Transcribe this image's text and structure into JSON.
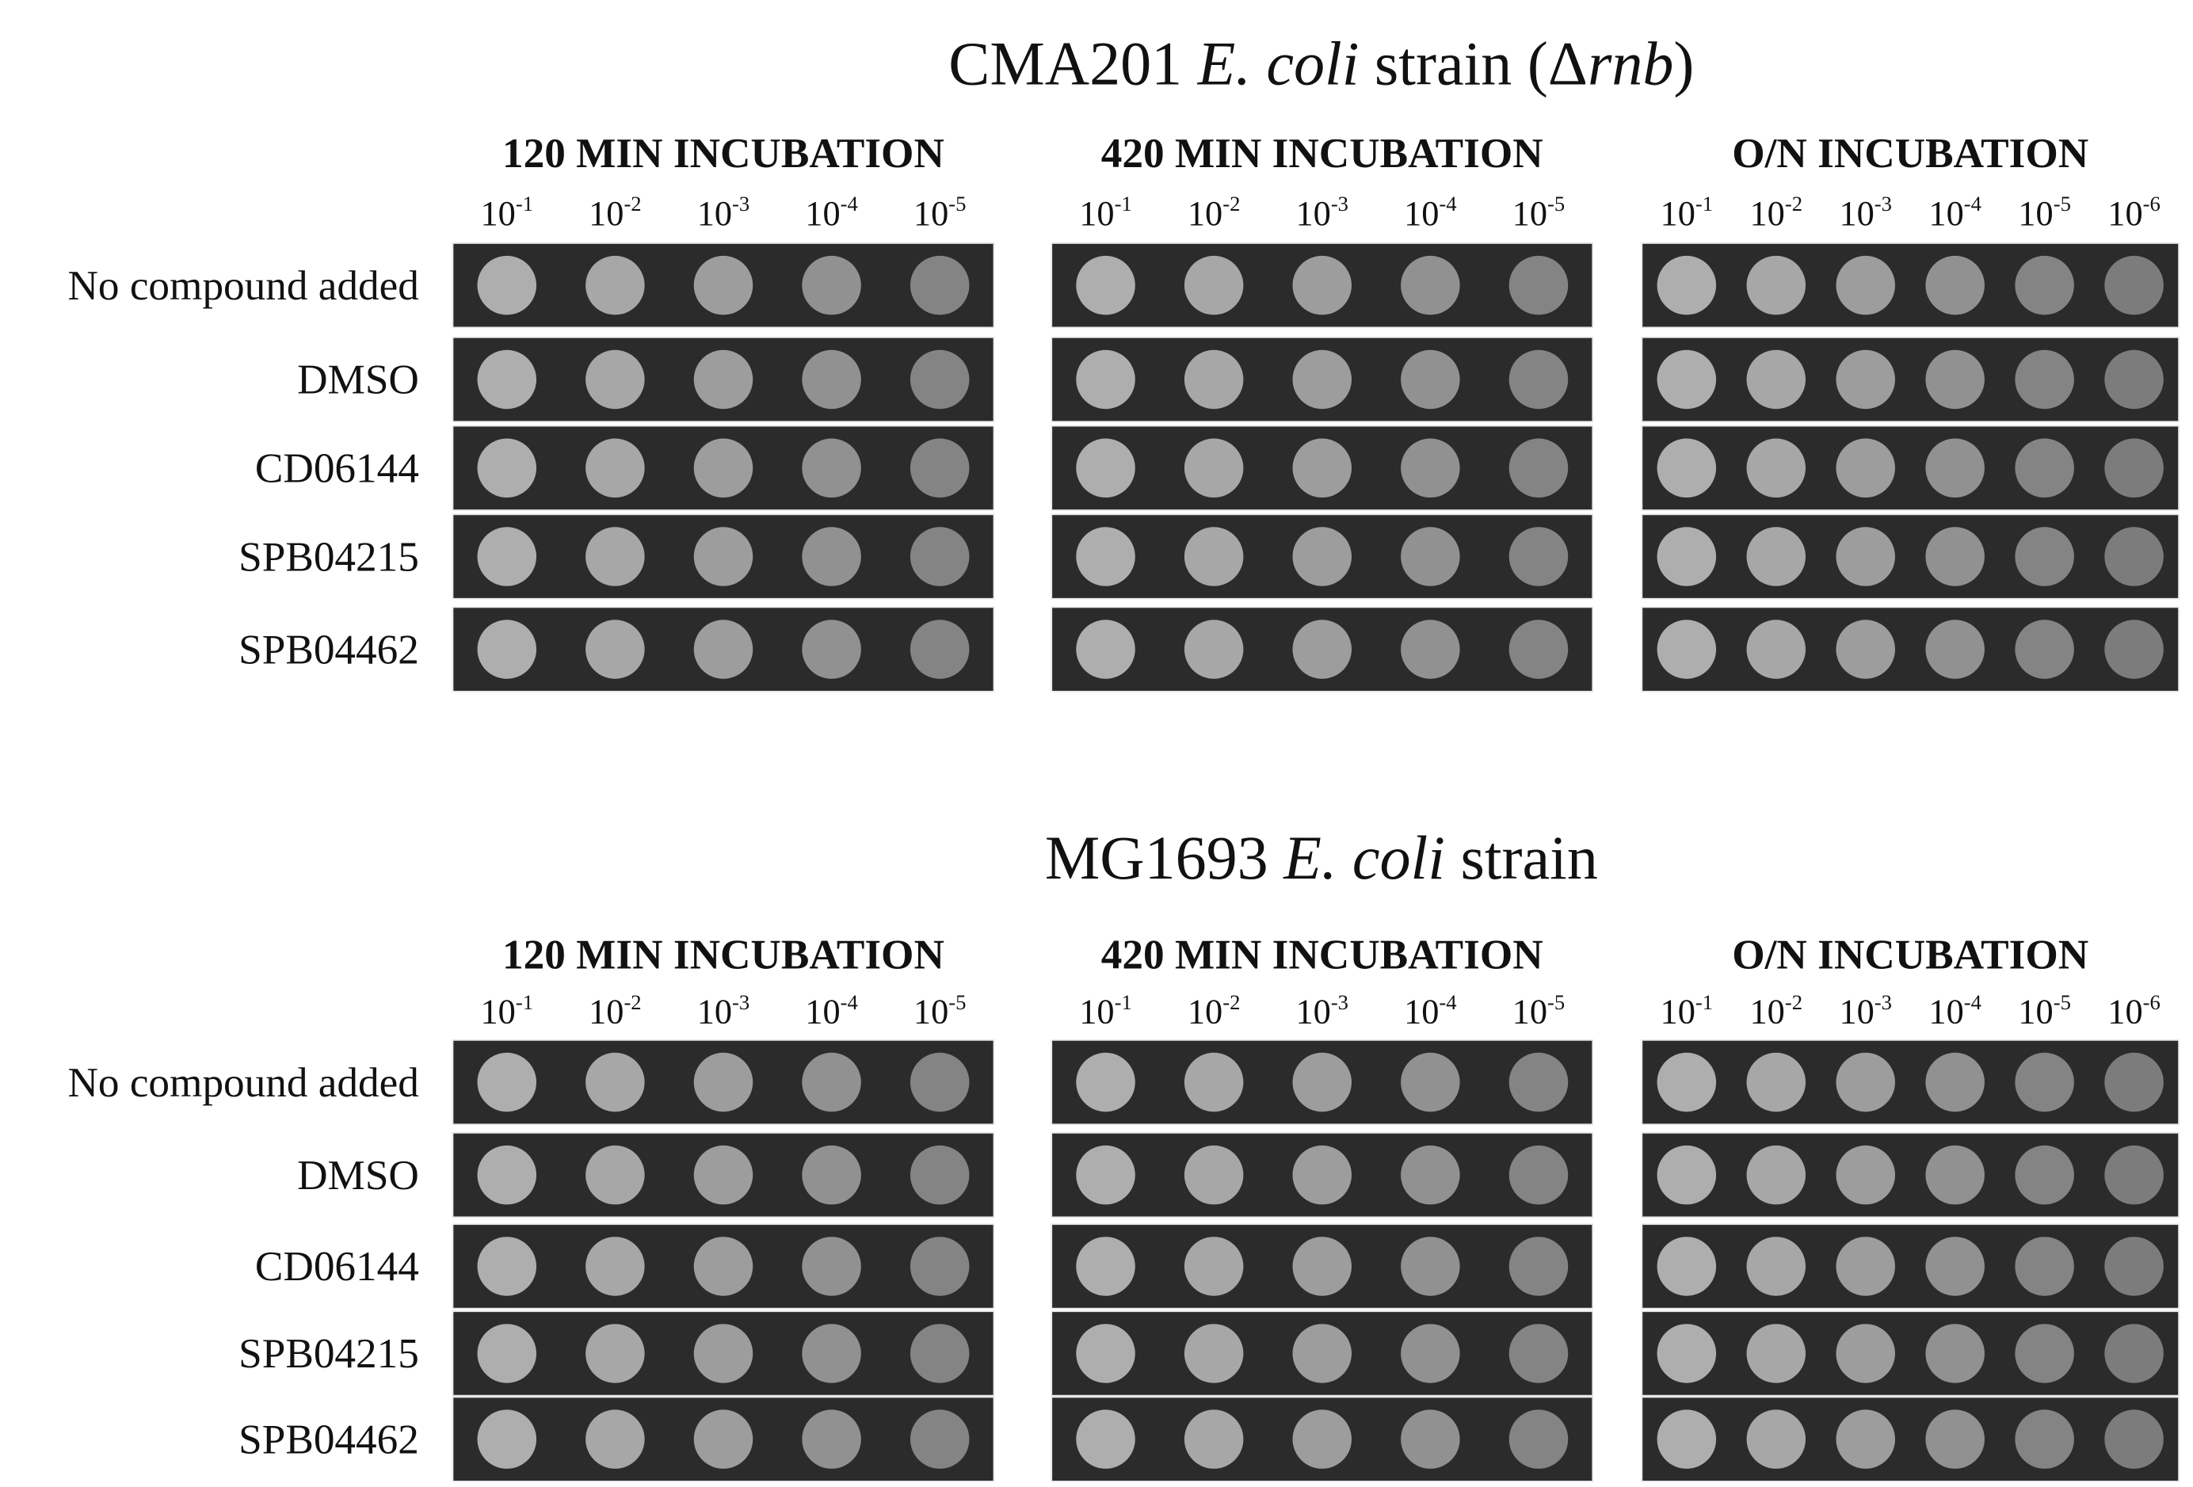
{
  "panels": [
    {
      "title": [
        {
          "text": "CMA201 ",
          "italic": false
        },
        {
          "text": "E. coli",
          "italic": true
        },
        {
          "text": " strain (Δ",
          "italic": false
        },
        {
          "text": "rnb",
          "italic": true
        },
        {
          "text": ")",
          "italic": false
        }
      ],
      "columns": [
        {
          "header": "120 MIN INCUBATION",
          "dilutions": [
            {
              "base": "10",
              "exponent": "-1"
            },
            {
              "base": "10",
              "exponent": "-2"
            },
            {
              "base": "10",
              "exponent": "-3"
            },
            {
              "base": "10",
              "exponent": "-4"
            },
            {
              "base": "10",
              "exponent": "-5"
            }
          ]
        },
        {
          "header": "420 MIN INCUBATION",
          "dilutions": [
            {
              "base": "10",
              "exponent": "-1"
            },
            {
              "base": "10",
              "exponent": "-2"
            },
            {
              "base": "10",
              "exponent": "-3"
            },
            {
              "base": "10",
              "exponent": "-4"
            },
            {
              "base": "10",
              "exponent": "-5"
            }
          ]
        },
        {
          "header": "O/N INCUBATION",
          "dilutions": [
            {
              "base": "10",
              "exponent": "-1"
            },
            {
              "base": "10",
              "exponent": "-2"
            },
            {
              "base": "10",
              "exponent": "-3"
            },
            {
              "base": "10",
              "exponent": "-4"
            },
            {
              "base": "10",
              "exponent": "-5"
            },
            {
              "base": "10",
              "exponent": "-6"
            }
          ]
        }
      ],
      "rows": [
        "No compound added",
        "DMSO",
        "CD06144",
        "SPB04215",
        "SPB04462"
      ]
    },
    {
      "title": [
        {
          "text": "MG1693 ",
          "italic": false
        },
        {
          "text": "E. coli",
          "italic": true
        },
        {
          "text": " strain",
          "italic": false
        }
      ],
      "columns": [
        {
          "header": "120 MIN INCUBATION",
          "dilutions": [
            {
              "base": "10",
              "exponent": "-1"
            },
            {
              "base": "10",
              "exponent": "-2"
            },
            {
              "base": "10",
              "exponent": "-3"
            },
            {
              "base": "10",
              "exponent": "-4"
            },
            {
              "base": "10",
              "exponent": "-5"
            }
          ]
        },
        {
          "header": "420 MIN INCUBATION",
          "dilutions": [
            {
              "base": "10",
              "exponent": "-1"
            },
            {
              "base": "10",
              "exponent": "-2"
            },
            {
              "base": "10",
              "exponent": "-3"
            },
            {
              "base": "10",
              "exponent": "-4"
            },
            {
              "base": "10",
              "exponent": "-5"
            }
          ]
        },
        {
          "header": "O/N INCUBATION",
          "dilutions": [
            {
              "base": "10",
              "exponent": "-1"
            },
            {
              "base": "10",
              "exponent": "-2"
            },
            {
              "base": "10",
              "exponent": "-3"
            },
            {
              "base": "10",
              "exponent": "-4"
            },
            {
              "base": "10",
              "exponent": "-5"
            },
            {
              "base": "10",
              "exponent": "-6"
            }
          ]
        }
      ],
      "rows": [
        "No compound added",
        "DMSO",
        "CD06144",
        "SPB04215",
        "SPB04462"
      ]
    }
  ]
}
